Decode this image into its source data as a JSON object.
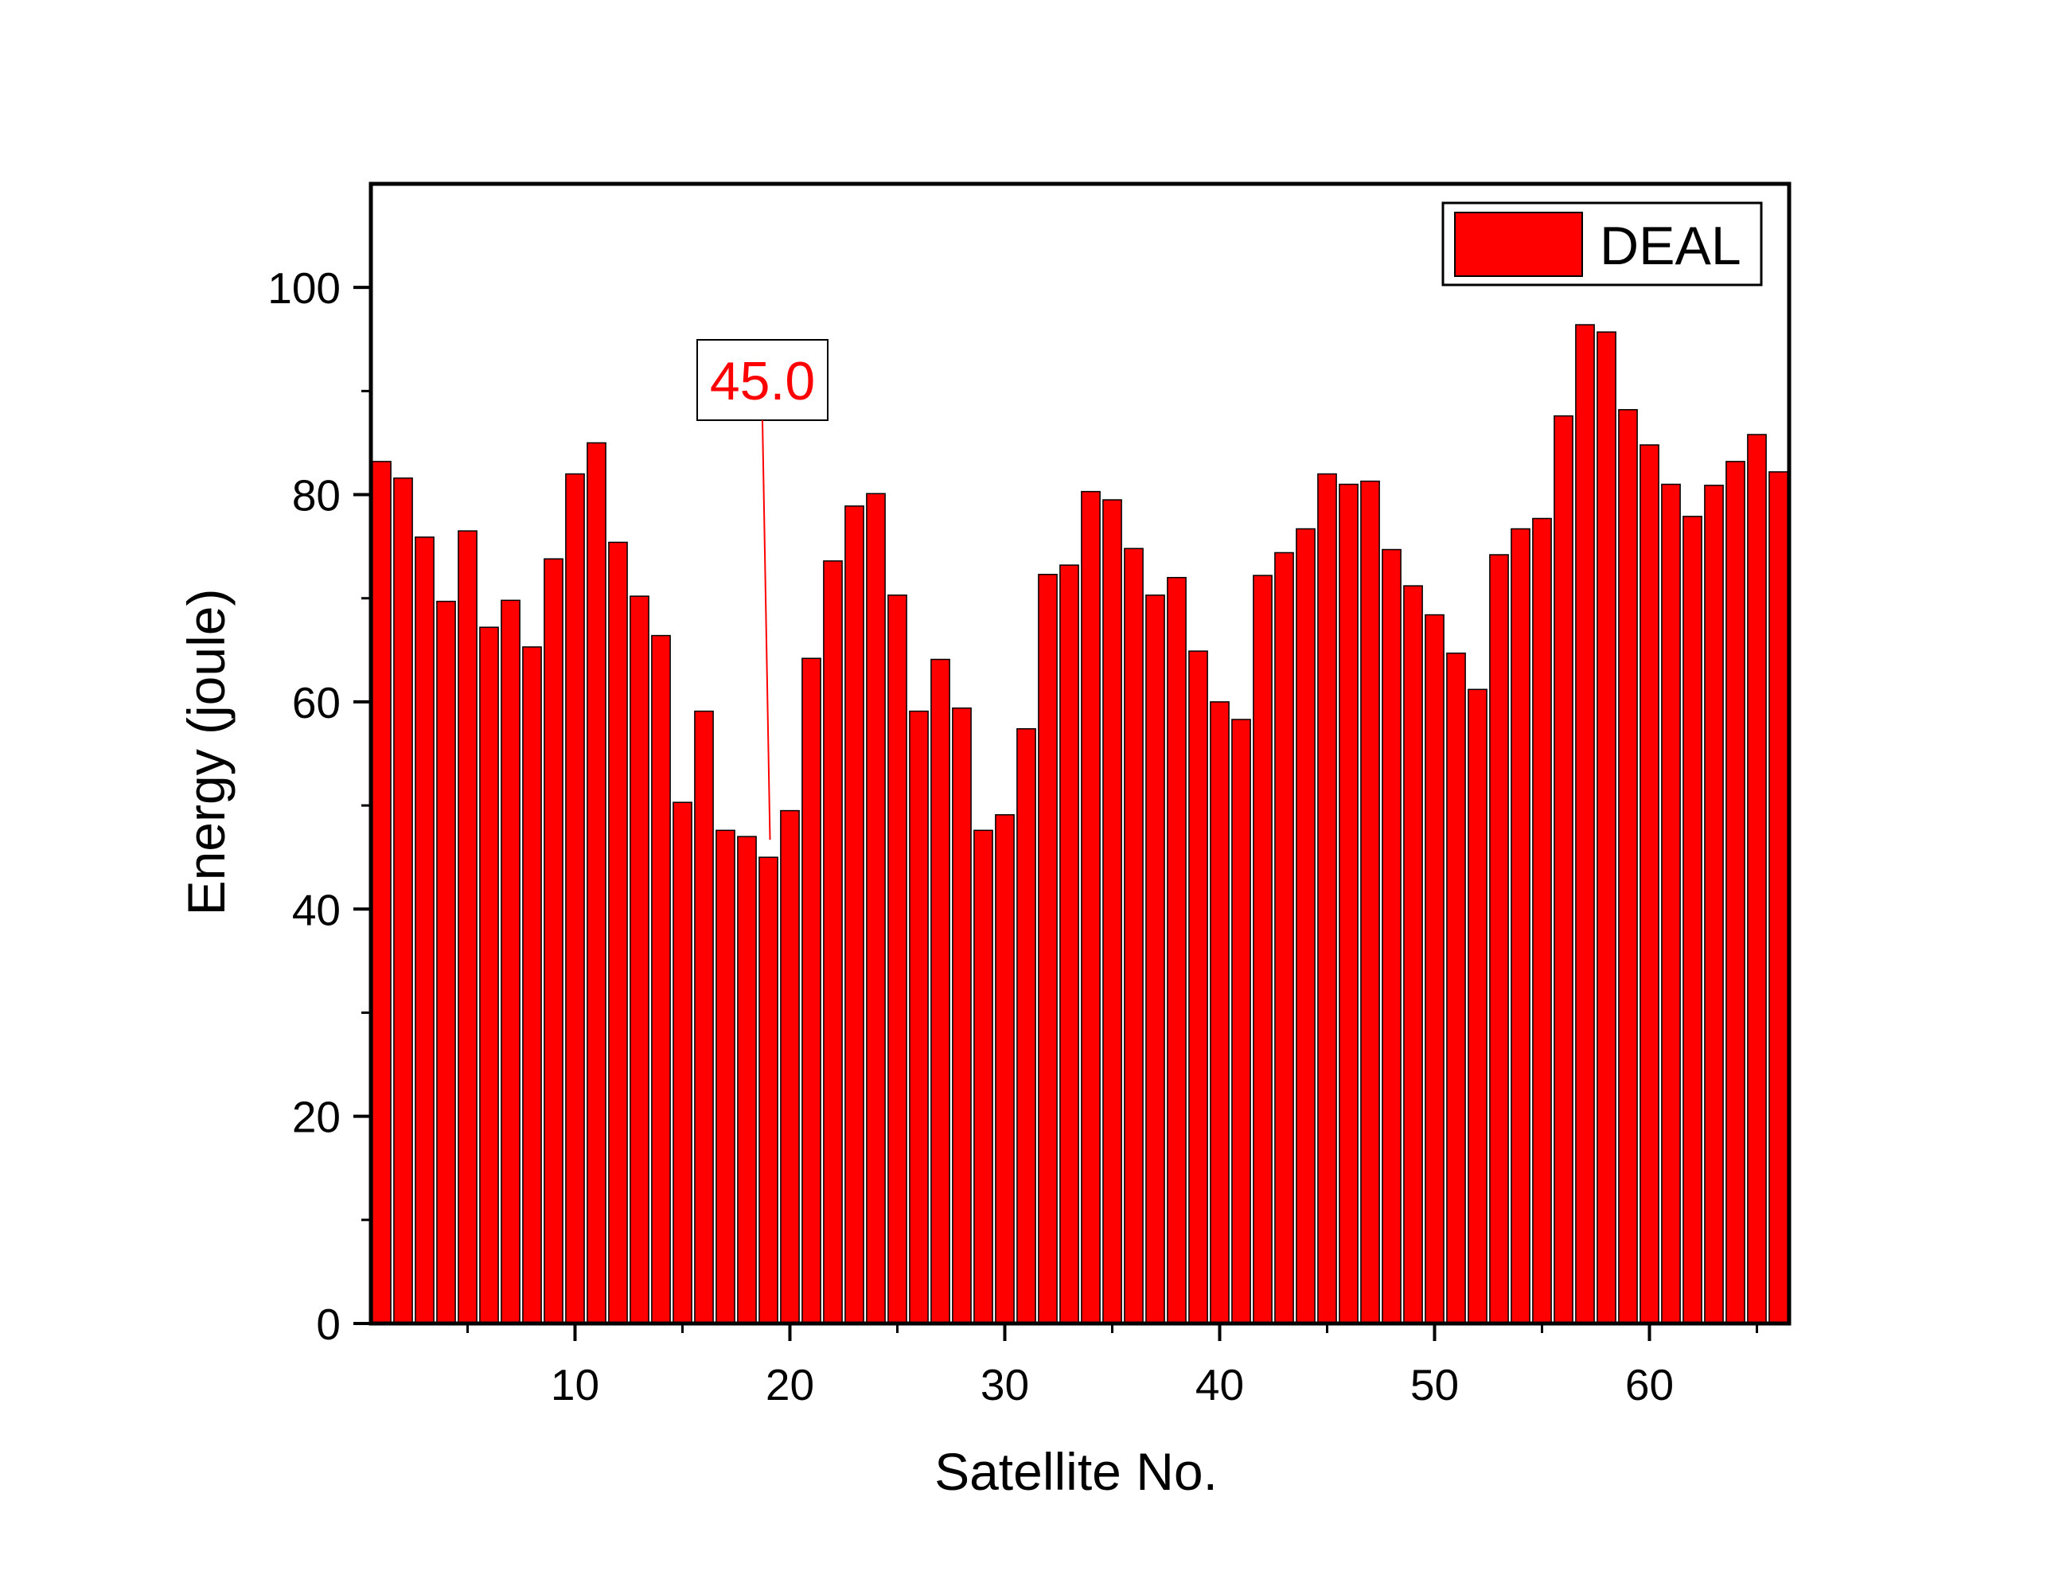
{
  "chart_data": {
    "type": "bar",
    "xlabel": "Satellite No.",
    "ylabel": "Energy (joule)",
    "xlim": [
      0.5,
      66.5
    ],
    "ylim": [
      0,
      110
    ],
    "x_ticks": [
      10,
      20,
      30,
      40,
      50,
      60
    ],
    "y_ticks": [
      0,
      20,
      40,
      60,
      80,
      100
    ],
    "legend": {
      "placement": "top-right"
    },
    "grid": false,
    "series": [
      {
        "name": "DEAL",
        "color": "#ff0000",
        "x": [
          1,
          2,
          3,
          4,
          5,
          6,
          7,
          8,
          9,
          10,
          11,
          12,
          13,
          14,
          15,
          16,
          17,
          18,
          19,
          20,
          21,
          22,
          23,
          24,
          25,
          26,
          27,
          28,
          29,
          30,
          31,
          32,
          33,
          34,
          35,
          36,
          37,
          38,
          39,
          40,
          41,
          42,
          43,
          44,
          45,
          46,
          47,
          48,
          49,
          50,
          51,
          52,
          53,
          54,
          55,
          56,
          57,
          58,
          59,
          60,
          61,
          62,
          63,
          64,
          65,
          66
        ],
        "values": [
          83.2,
          81.6,
          75.9,
          69.7,
          76.5,
          67.2,
          69.8,
          65.3,
          73.8,
          82.0,
          85.0,
          75.4,
          70.2,
          66.4,
          50.3,
          59.1,
          47.6,
          47.0,
          45.0,
          49.5,
          64.2,
          73.6,
          78.9,
          80.1,
          70.3,
          59.1,
          64.1,
          59.4,
          47.6,
          49.1,
          57.4,
          72.3,
          73.2,
          80.3,
          79.5,
          74.8,
          70.3,
          72.0,
          64.9,
          60.0,
          58.3,
          72.2,
          74.4,
          76.7,
          82.0,
          81.0,
          81.3,
          74.7,
          71.2,
          68.4,
          64.7,
          61.2,
          74.2,
          76.7,
          77.7,
          87.6,
          96.4,
          95.7,
          88.2,
          84.8,
          81.0,
          77.9,
          80.9,
          83.2,
          85.8,
          82.2
        ]
      }
    ],
    "annotations": [
      {
        "text": "45.0",
        "x": 19,
        "y": 45.0,
        "color": "#ff0000"
      }
    ]
  }
}
